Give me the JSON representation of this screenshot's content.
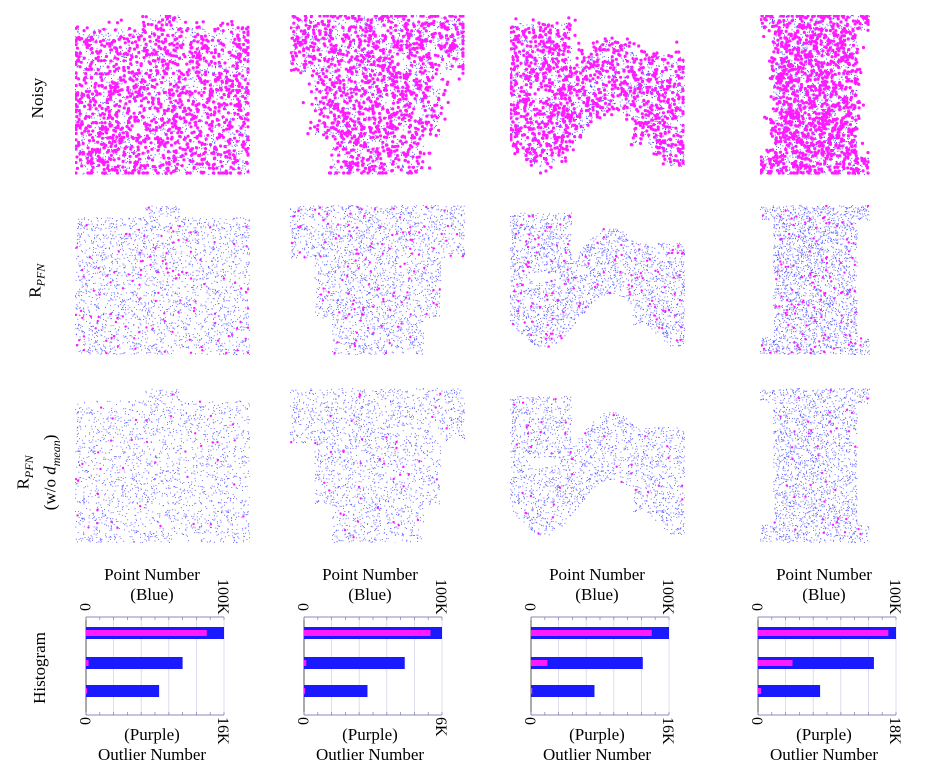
{
  "row_labels": {
    "noisy": "Noisy",
    "rpfn_main": "R",
    "rpfn_sub": "PFN",
    "rpfn2_main": "R",
    "rpfn2_sub": "PFN",
    "rpfn2_note_prefix": "(w/o ",
    "rpfn2_note_var": "d",
    "rpfn2_note_sub": "mean",
    "rpfn2_note_suffix": ")",
    "histogram": "Histogram"
  },
  "colors": {
    "point": "#1a1aff",
    "outlier": "#ff1aff"
  },
  "histograms": [
    {
      "top_title_1": "Point Number",
      "top_title_2": "(Blue)",
      "bottom_title_1": "(Purple)",
      "bottom_title_2": "Outlier Number",
      "top_min": "0",
      "top_max": "100K",
      "bottom_min": "0",
      "bottom_max": "16K",
      "point_values": [
        100,
        70,
        53
      ],
      "outlier_values": [
        14,
        0.3,
        0.1
      ],
      "point_max": 100,
      "outlier_max": 16
    },
    {
      "top_title_1": "Point Number",
      "top_title_2": "(Blue)",
      "bottom_title_1": "(Purple)",
      "bottom_title_2": "Outlier Number",
      "top_min": "0",
      "top_max": "100K",
      "bottom_min": "0",
      "bottom_max": "6K",
      "point_values": [
        100,
        73,
        46
      ],
      "outlier_values": [
        5.5,
        0.1,
        0.02
      ],
      "point_max": 100,
      "outlier_max": 6
    },
    {
      "top_title_1": "Point Number",
      "top_title_2": "(Blue)",
      "bottom_title_1": "(Purple)",
      "bottom_title_2": "Outlier Number",
      "top_min": "0",
      "top_max": "100K",
      "bottom_min": "0",
      "bottom_max": "16K",
      "point_values": [
        100,
        81,
        46
      ],
      "outlier_values": [
        14,
        1.9,
        0.15
      ],
      "point_max": 100,
      "outlier_max": 16
    },
    {
      "top_title_1": "Point Number",
      "top_title_2": "(Blue)",
      "bottom_title_1": "(Purple)",
      "bottom_title_2": "Outlier Number",
      "top_min": "0",
      "top_max": "100K",
      "bottom_min": "0",
      "bottom_max": "18K",
      "point_values": [
        100,
        84,
        45
      ],
      "outlier_values": [
        17,
        4.5,
        0.4
      ],
      "point_max": 100,
      "outlier_max": 18
    }
  ]
}
